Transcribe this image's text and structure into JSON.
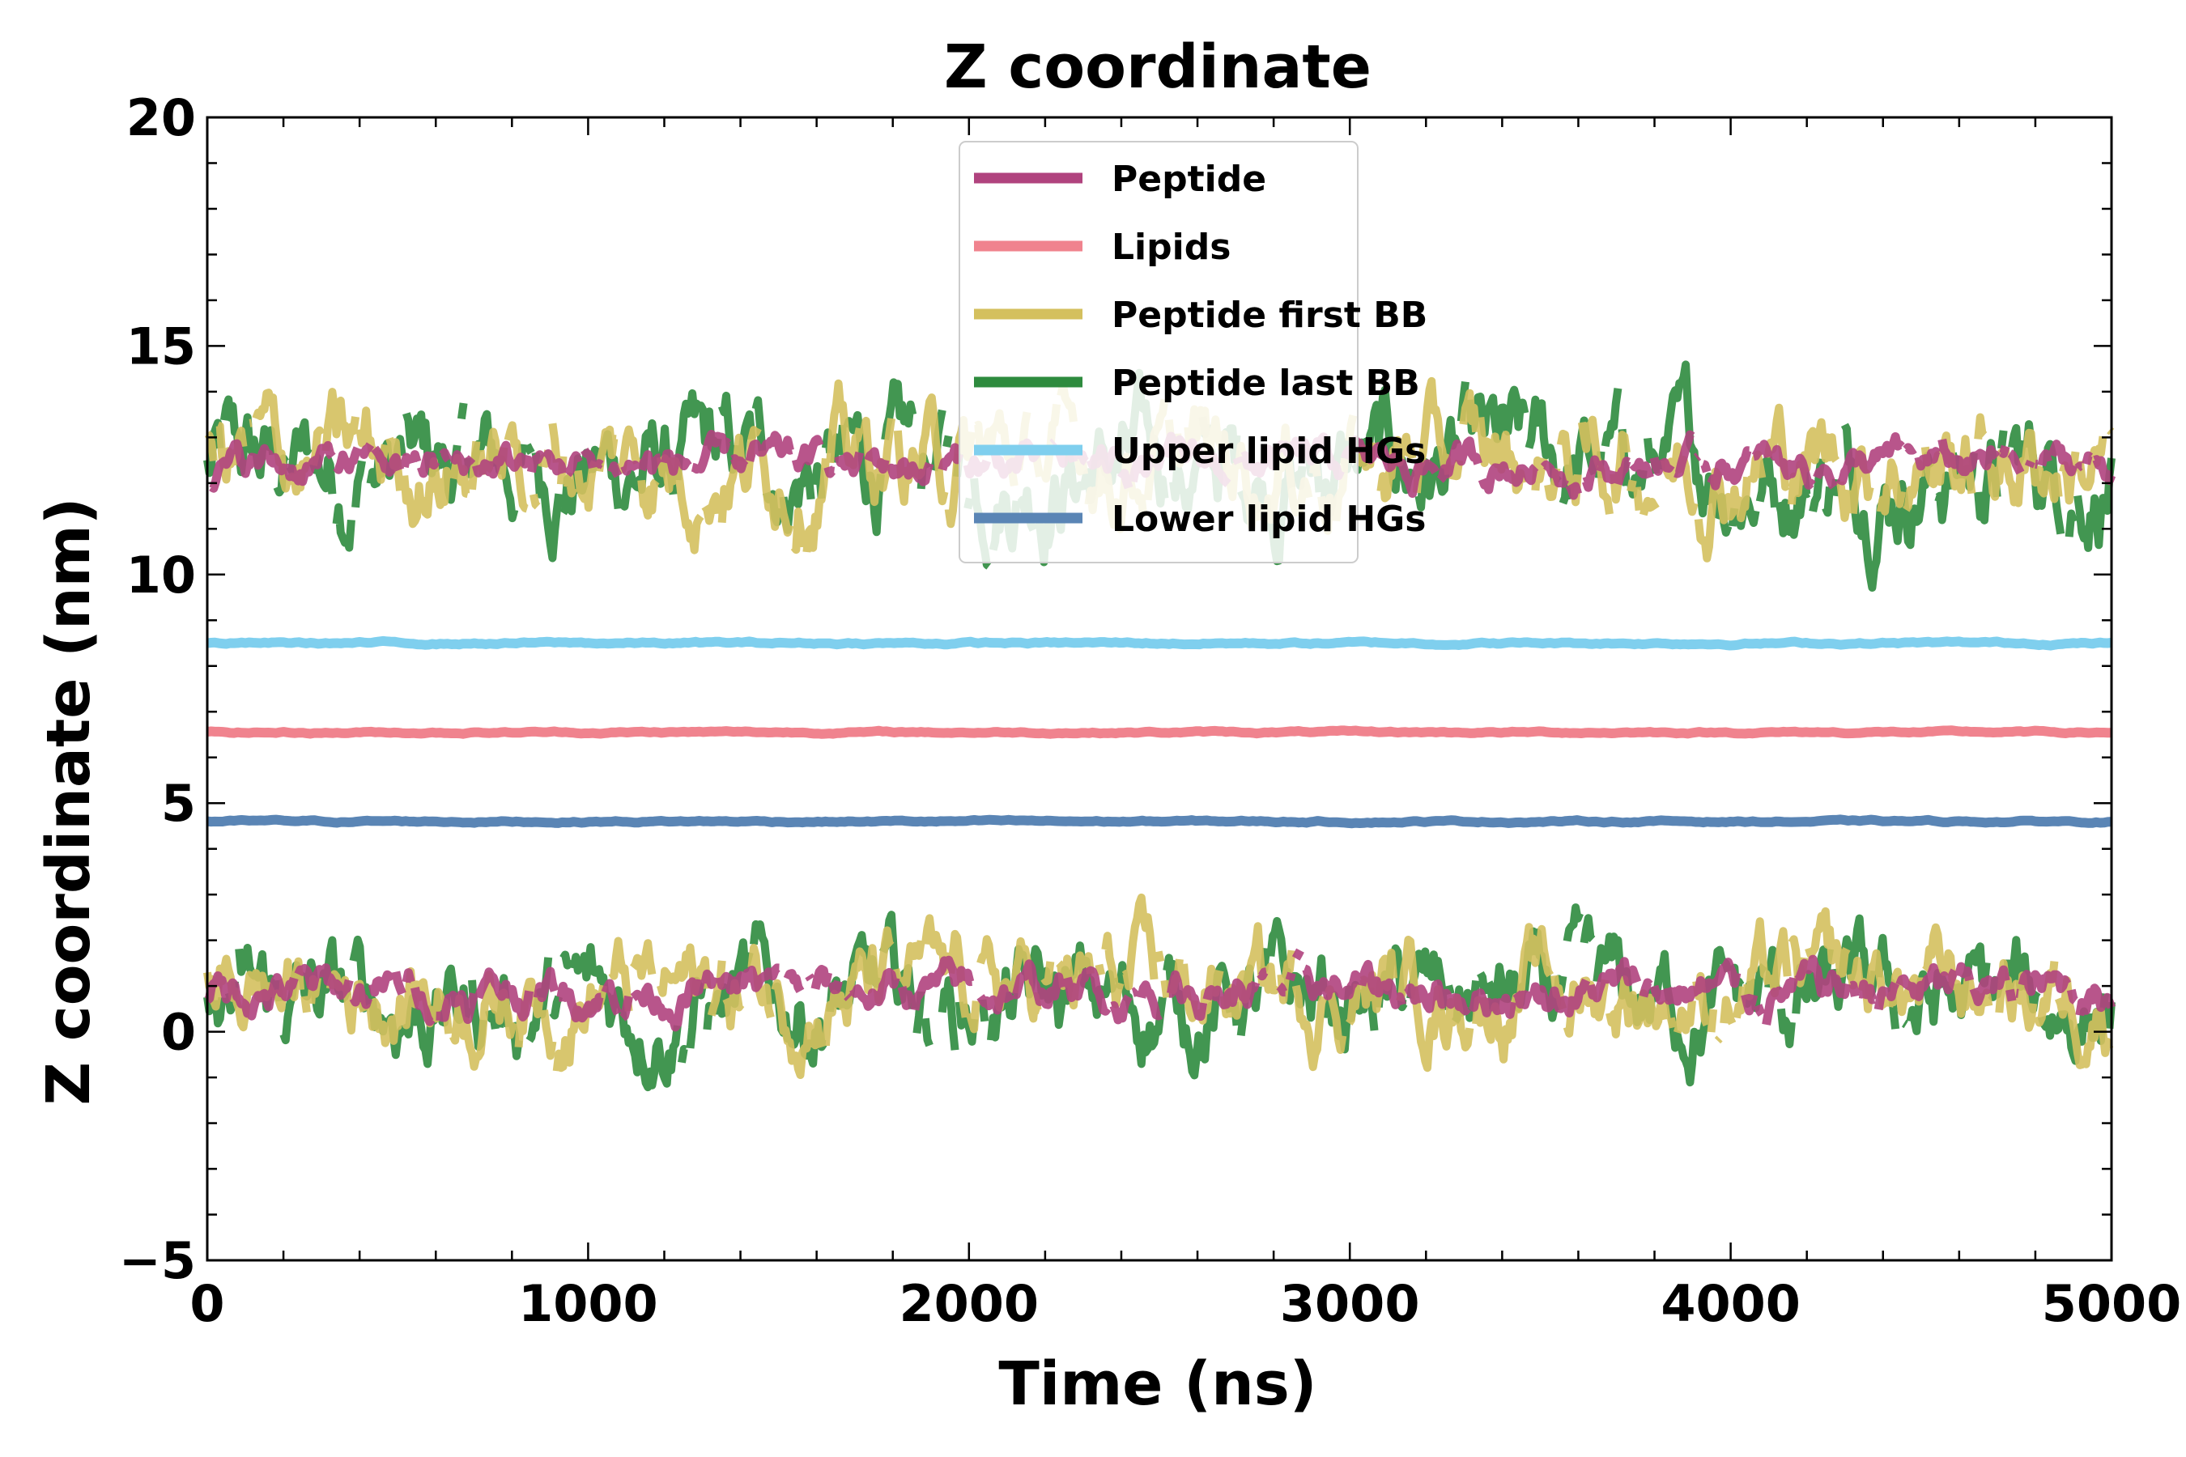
{
  "chart_data": {
    "type": "line",
    "title": "Z coordinate",
    "xlabel": "Time (ns)",
    "ylabel": "Z coordinate (nm)",
    "xlim": [
      0,
      5000
    ],
    "ylim": [
      -5,
      20
    ],
    "xticks": [
      "0",
      "1000",
      "2000",
      "3000",
      "4000",
      "5000"
    ],
    "yticks": [
      "−5",
      "0",
      "5",
      "10",
      "15",
      "20"
    ],
    "grid": false,
    "legend_position": "top-center",
    "series": [
      {
        "name": "Peptide",
        "color": "#b0437e",
        "style": "fluctuating",
        "segments": [
          {
            "mean": 12.4,
            "amplitude": 0.8
          },
          {
            "mean": 0.9,
            "amplitude": 0.9
          }
        ]
      },
      {
        "name": "Lipids",
        "color": "#f0838e",
        "style": "steady",
        "mean": 6.55,
        "amplitude": 0.05
      },
      {
        "name": "Peptide first BB",
        "color": "#d4c05e",
        "style": "fluctuating",
        "segments": [
          {
            "mean": 12.5,
            "amplitude": 2.2
          },
          {
            "mean": 0.9,
            "amplitude": 2.0
          }
        ]
      },
      {
        "name": "Peptide last BB",
        "color": "#2e8b3e",
        "style": "fluctuating",
        "segments": [
          {
            "mean": 12.3,
            "amplitude": 2.4
          },
          {
            "mean": 0.6,
            "amplitude": 2.2
          }
        ]
      },
      {
        "name": "Upper lipid HGs",
        "color": "#7fcfee",
        "style": "steady",
        "mean": 8.5,
        "amplitude": 0.06
      },
      {
        "name": "Lower lipid HGs",
        "color": "#5a85b5",
        "style": "steady",
        "mean": 4.6,
        "amplitude": 0.05
      }
    ]
  }
}
